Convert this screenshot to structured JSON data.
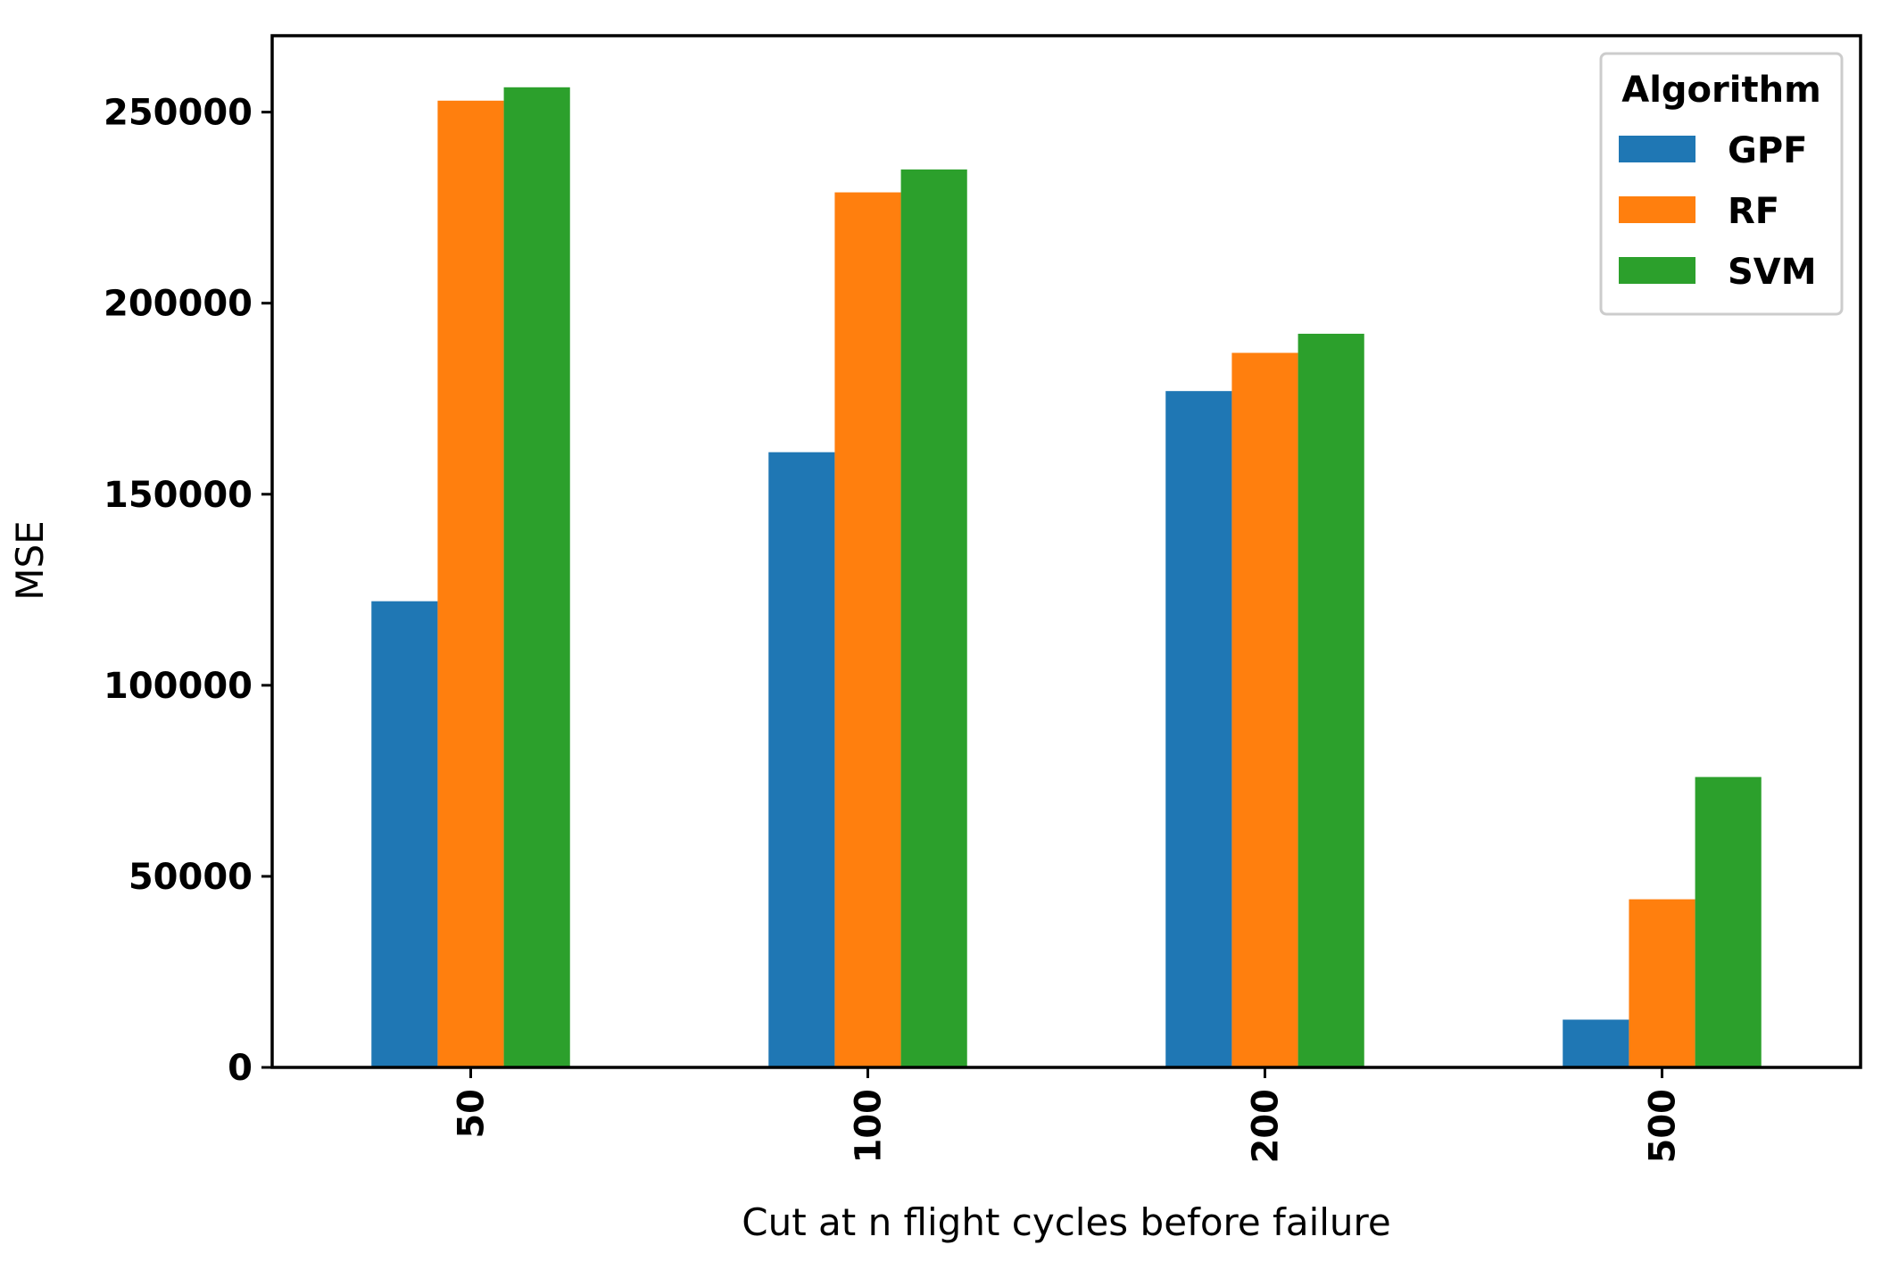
{
  "chart_data": {
    "type": "bar",
    "title": "",
    "xlabel": "Cut at n flight cycles before failure",
    "ylabel": "MSE",
    "categories": [
      "50",
      "100",
      "200",
      "500"
    ],
    "ylim": [
      0,
      270000
    ],
    "yticks": [
      0,
      50000,
      100000,
      150000,
      200000,
      250000
    ],
    "ytick_labels": [
      "0",
      "50000",
      "100000",
      "150000",
      "200000",
      "250000"
    ],
    "grid": false,
    "legend": {
      "title": "Algorithm",
      "placement": "top-right"
    },
    "series": [
      {
        "name": "GPF",
        "color": "#1f77b4",
        "values": [
          122000,
          161000,
          177000,
          12500
        ]
      },
      {
        "name": "RF",
        "color": "#ff7f0e",
        "values": [
          253000,
          229000,
          187000,
          44000
        ]
      },
      {
        "name": "SVM",
        "color": "#2ca02c",
        "values": [
          256500,
          235000,
          192000,
          76000
        ]
      }
    ]
  }
}
